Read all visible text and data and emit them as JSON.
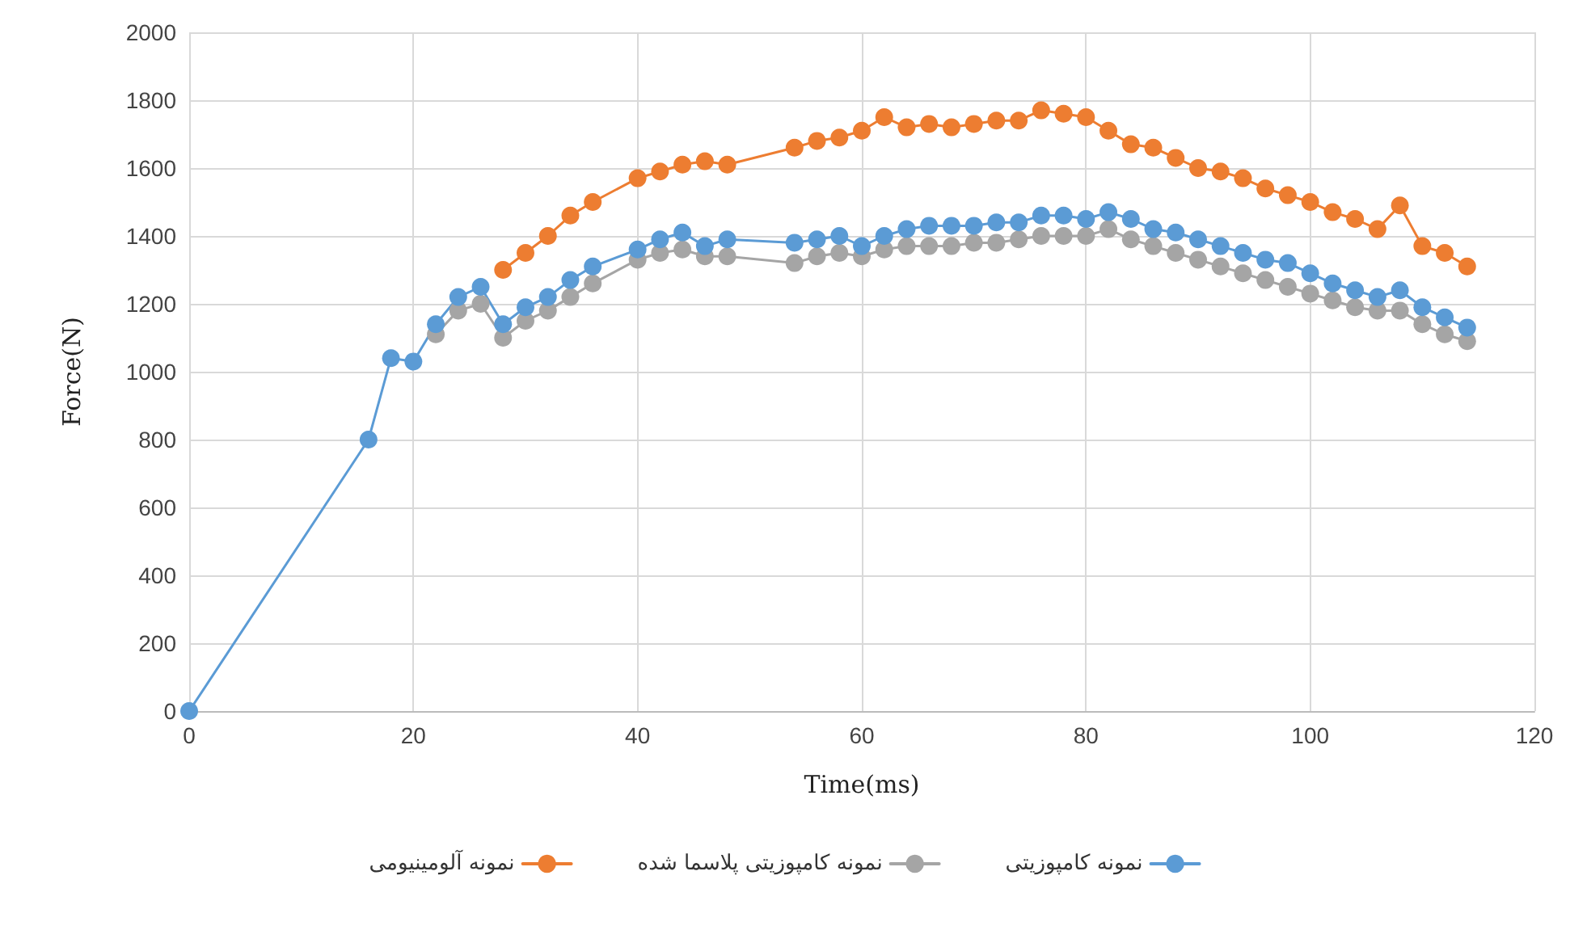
{
  "chart_data": {
    "type": "line",
    "xlabel": "Time(ms)",
    "ylabel": "Force(N)",
    "xlim": [
      0,
      120
    ],
    "xticks": [
      0,
      20,
      40,
      60,
      80,
      100,
      120
    ],
    "ylim": [
      0,
      2000
    ],
    "yticks": [
      0,
      200,
      400,
      600,
      800,
      1000,
      1200,
      1400,
      1600,
      1800,
      2000
    ],
    "grid": true,
    "legend": "bottom",
    "marker": "circle",
    "line_style": "solid",
    "series": [
      {
        "name": "نمونه آلومینیومی",
        "color": "#ed7d31",
        "x": [
          28,
          30,
          32,
          34,
          36,
          40,
          42,
          44,
          46,
          48,
          54,
          56,
          58,
          60,
          62,
          64,
          66,
          68,
          70,
          72,
          74,
          76,
          78,
          80,
          82,
          84,
          86,
          88,
          90,
          92,
          94,
          96,
          98,
          100,
          102,
          104,
          106,
          108,
          110,
          112,
          114
        ],
        "values": [
          1300,
          1350,
          1400,
          1460,
          1500,
          1570,
          1590,
          1610,
          1620,
          1610,
          1660,
          1680,
          1690,
          1710,
          1750,
          1720,
          1730,
          1720,
          1730,
          1740,
          1740,
          1770,
          1760,
          1750,
          1710,
          1670,
          1660,
          1630,
          1600,
          1590,
          1570,
          1540,
          1520,
          1500,
          1470,
          1450,
          1420,
          1490,
          1370,
          1350,
          1310
        ]
      },
      {
        "name": "نمونه کامپوزیتی پلاسما شده",
        "color": "#a5a5a5",
        "x": [
          22,
          24,
          26,
          28,
          30,
          32,
          34,
          36,
          40,
          42,
          44,
          46,
          48,
          54,
          56,
          58,
          60,
          62,
          64,
          66,
          68,
          70,
          72,
          74,
          76,
          78,
          80,
          82,
          84,
          86,
          88,
          90,
          92,
          94,
          96,
          98,
          100,
          102,
          104,
          106,
          108,
          110,
          112,
          114
        ],
        "values": [
          1110,
          1180,
          1200,
          1100,
          1150,
          1180,
          1220,
          1260,
          1330,
          1350,
          1360,
          1340,
          1340,
          1320,
          1340,
          1350,
          1340,
          1360,
          1370,
          1370,
          1370,
          1380,
          1380,
          1390,
          1400,
          1400,
          1400,
          1420,
          1390,
          1370,
          1350,
          1330,
          1310,
          1290,
          1270,
          1250,
          1230,
          1210,
          1190,
          1180,
          1180,
          1140,
          1110,
          1090
        ]
      },
      {
        "name": "نمونه کامپوزیتی",
        "color": "#5b9bd5",
        "x": [
          0,
          16,
          18,
          20,
          22,
          24,
          26,
          28,
          30,
          32,
          34,
          36,
          40,
          42,
          44,
          46,
          48,
          54,
          56,
          58,
          60,
          62,
          64,
          66,
          68,
          70,
          72,
          74,
          76,
          78,
          80,
          82,
          84,
          86,
          88,
          90,
          92,
          94,
          96,
          98,
          100,
          102,
          104,
          106,
          108,
          110,
          112,
          114
        ],
        "values": [
          0,
          800,
          1040,
          1030,
          1140,
          1220,
          1250,
          1140,
          1190,
          1220,
          1270,
          1310,
          1360,
          1390,
          1410,
          1370,
          1390,
          1380,
          1390,
          1400,
          1370,
          1400,
          1420,
          1430,
          1430,
          1430,
          1440,
          1440,
          1460,
          1460,
          1450,
          1470,
          1450,
          1420,
          1410,
          1390,
          1370,
          1350,
          1330,
          1320,
          1290,
          1260,
          1240,
          1220,
          1240,
          1190,
          1160,
          1130
        ]
      }
    ]
  }
}
